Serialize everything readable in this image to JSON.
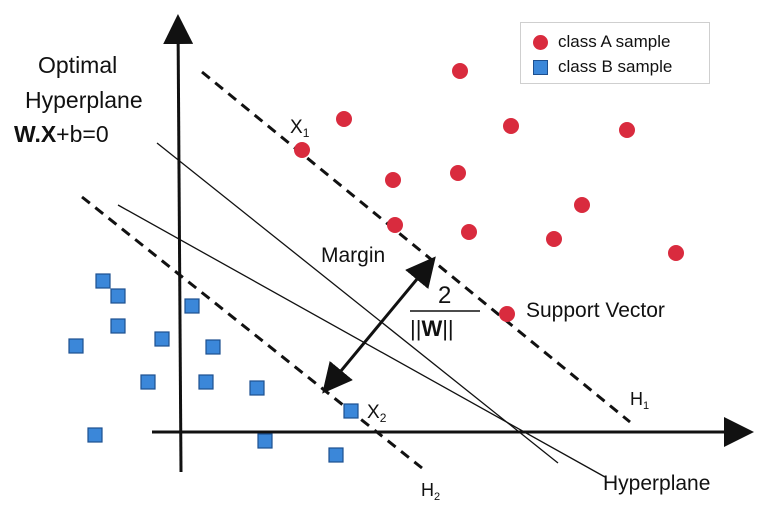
{
  "legend": {
    "class_a": "class A sample",
    "class_b": "class B sample"
  },
  "labels": {
    "optimal_line1": "Optimal",
    "optimal_line2": "Hyperplane",
    "equation_bold": "W.X",
    "equation_rest": "+b=0",
    "x1": "X",
    "x1_sub": "1",
    "x2": "X",
    "x2_sub": "2",
    "margin": "Margin",
    "margin_numerator": "2",
    "margin_denominator_left": "||",
    "margin_denominator_w": "W",
    "margin_denominator_right": "||",
    "support_vector": "Support Vector",
    "h1": "H",
    "h1_sub": "1",
    "h2": "H",
    "h2_sub": "2",
    "hyperplane": "Hyperplane"
  },
  "colors": {
    "class_a": "#d92b3e",
    "class_b": "#3b87d9",
    "class_b_border": "#1d4f8f",
    "lines": "#111111"
  }
}
